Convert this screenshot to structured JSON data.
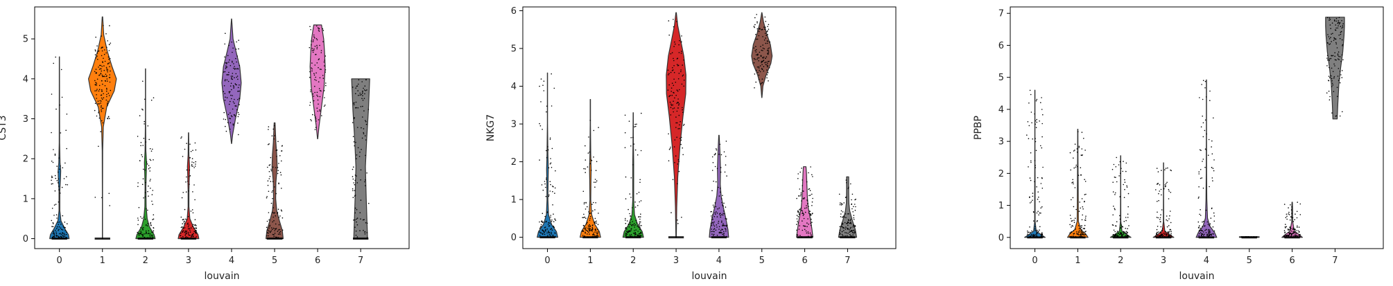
{
  "chart_data": [
    {
      "type": "violin",
      "xlabel": "louvain",
      "ylabel": "CST3",
      "categories": [
        "0",
        "1",
        "2",
        "3",
        "4",
        "5",
        "6",
        "7"
      ],
      "ylim": [
        -0.25,
        5.8
      ],
      "yticks": [
        0,
        1,
        2,
        3,
        4,
        5
      ],
      "colors": [
        "#1f77b4",
        "#ff7f0e",
        "#2ca02c",
        "#d62728",
        "#9467bd",
        "#8c564b",
        "#e377c2",
        "#7f7f7f"
      ],
      "violins": [
        {
          "category": "0",
          "max": 4.55,
          "profile": [
            [
              0,
              0.45
            ],
            [
              0.1,
              0.42
            ],
            [
              0.25,
              0.25
            ],
            [
              0.45,
              0.07
            ],
            [
              0.7,
              0.02
            ],
            [
              1.2,
              0.02
            ],
            [
              1.5,
              0.05
            ],
            [
              1.7,
              0.06
            ],
            [
              1.9,
              0.03
            ],
            [
              2.4,
              0.01
            ],
            [
              4.55,
              0.005
            ]
          ]
        },
        {
          "category": "1",
          "max": 5.55,
          "profile": [
            [
              0,
              0.005
            ],
            [
              1.0,
              0.005
            ],
            [
              2.2,
              0.01
            ],
            [
              2.8,
              0.04
            ],
            [
              3.3,
              0.2
            ],
            [
              3.7,
              0.55
            ],
            [
              4.0,
              0.65
            ],
            [
              4.3,
              0.45
            ],
            [
              4.7,
              0.22
            ],
            [
              5.1,
              0.06
            ],
            [
              5.55,
              0.01
            ]
          ]
        },
        {
          "category": "2",
          "max": 4.25,
          "profile": [
            [
              0,
              0.45
            ],
            [
              0.1,
              0.4
            ],
            [
              0.3,
              0.18
            ],
            [
              0.5,
              0.08
            ],
            [
              0.8,
              0.03
            ],
            [
              1.3,
              0.02
            ],
            [
              1.7,
              0.04
            ],
            [
              1.9,
              0.05
            ],
            [
              2.2,
              0.02
            ],
            [
              3.0,
              0.005
            ],
            [
              4.25,
              0.005
            ]
          ]
        },
        {
          "category": "3",
          "max": 2.65,
          "profile": [
            [
              0,
              0.48
            ],
            [
              0.1,
              0.44
            ],
            [
              0.3,
              0.22
            ],
            [
              0.5,
              0.06
            ],
            [
              0.8,
              0.02
            ],
            [
              1.2,
              0.02
            ],
            [
              1.6,
              0.04
            ],
            [
              1.8,
              0.05
            ],
            [
              2.1,
              0.02
            ],
            [
              2.65,
              0.005
            ]
          ]
        },
        {
          "category": "4",
          "max": 5.5,
          "profile": [
            [
              2.38,
              0.005
            ],
            [
              2.6,
              0.05
            ],
            [
              3.0,
              0.18
            ],
            [
              3.5,
              0.38
            ],
            [
              3.9,
              0.45
            ],
            [
              4.3,
              0.38
            ],
            [
              4.7,
              0.2
            ],
            [
              5.0,
              0.07
            ],
            [
              5.5,
              0.005
            ]
          ]
        },
        {
          "category": "5",
          "max": 2.9,
          "profile": [
            [
              0,
              0.4
            ],
            [
              0.2,
              0.36
            ],
            [
              0.45,
              0.22
            ],
            [
              0.7,
              0.1
            ],
            [
              1.0,
              0.05
            ],
            [
              1.4,
              0.06
            ],
            [
              1.8,
              0.12
            ],
            [
              2.1,
              0.1
            ],
            [
              2.4,
              0.06
            ],
            [
              2.9,
              0.02
            ]
          ]
        },
        {
          "category": "6",
          "max": 5.35,
          "profile": [
            [
              2.5,
              0.005
            ],
            [
              2.8,
              0.06
            ],
            [
              3.3,
              0.18
            ],
            [
              3.8,
              0.3
            ],
            [
              4.3,
              0.35
            ],
            [
              4.7,
              0.32
            ],
            [
              5.0,
              0.28
            ],
            [
              5.35,
              0.18
            ]
          ]
        },
        {
          "category": "7",
          "max": 4.0,
          "profile": [
            [
              0,
              0.32
            ],
            [
              1.0,
              0.26
            ],
            [
              1.8,
              0.22
            ],
            [
              2.5,
              0.28
            ],
            [
              3.2,
              0.36
            ],
            [
              4.0,
              0.42
            ]
          ]
        }
      ]
    },
    {
      "type": "violin",
      "xlabel": "louvain",
      "ylabel": "NKG7",
      "categories": [
        "0",
        "1",
        "2",
        "3",
        "4",
        "5",
        "6",
        "7"
      ],
      "ylim": [
        -0.3,
        6.1
      ],
      "yticks": [
        0,
        1,
        2,
        3,
        4,
        5,
        6
      ],
      "colors": [
        "#1f77b4",
        "#ff7f0e",
        "#2ca02c",
        "#d62728",
        "#9467bd",
        "#8c564b",
        "#e377c2",
        "#7f7f7f"
      ],
      "violins": [
        {
          "category": "0",
          "max": 4.35,
          "profile": [
            [
              0,
              0.48
            ],
            [
              0.15,
              0.42
            ],
            [
              0.35,
              0.18
            ],
            [
              0.6,
              0.05
            ],
            [
              1.0,
              0.02
            ],
            [
              1.5,
              0.03
            ],
            [
              1.8,
              0.04
            ],
            [
              2.2,
              0.02
            ],
            [
              3.0,
              0.005
            ],
            [
              4.35,
              0.005
            ]
          ]
        },
        {
          "category": "1",
          "max": 3.65,
          "profile": [
            [
              0,
              0.48
            ],
            [
              0.15,
              0.42
            ],
            [
              0.35,
              0.2
            ],
            [
              0.6,
              0.06
            ],
            [
              1.0,
              0.02
            ],
            [
              1.5,
              0.03
            ],
            [
              1.8,
              0.04
            ],
            [
              2.2,
              0.02
            ],
            [
              3.0,
              0.005
            ],
            [
              3.65,
              0.005
            ]
          ]
        },
        {
          "category": "2",
          "max": 3.3,
          "profile": [
            [
              0,
              0.48
            ],
            [
              0.15,
              0.42
            ],
            [
              0.35,
              0.2
            ],
            [
              0.6,
              0.06
            ],
            [
              1.0,
              0.02
            ],
            [
              1.5,
              0.02
            ],
            [
              2.0,
              0.02
            ],
            [
              2.5,
              0.01
            ],
            [
              3.3,
              0.005
            ]
          ]
        },
        {
          "category": "3",
          "max": 5.95,
          "profile": [
            [
              0,
              0.01
            ],
            [
              0.8,
              0.03
            ],
            [
              1.6,
              0.08
            ],
            [
              2.4,
              0.18
            ],
            [
              3.2,
              0.32
            ],
            [
              3.8,
              0.45
            ],
            [
              4.3,
              0.46
            ],
            [
              4.8,
              0.36
            ],
            [
              5.2,
              0.22
            ],
            [
              5.6,
              0.08
            ],
            [
              5.95,
              0.01
            ]
          ]
        },
        {
          "category": "4",
          "max": 2.7,
          "profile": [
            [
              0,
              0.45
            ],
            [
              0.2,
              0.42
            ],
            [
              0.5,
              0.32
            ],
            [
              0.8,
              0.2
            ],
            [
              1.1,
              0.1
            ],
            [
              1.4,
              0.06
            ],
            [
              1.8,
              0.07
            ],
            [
              2.2,
              0.05
            ],
            [
              2.7,
              0.01
            ]
          ]
        },
        {
          "category": "5",
          "max": 5.95,
          "profile": [
            [
              3.7,
              0.005
            ],
            [
              4.0,
              0.05
            ],
            [
              4.3,
              0.2
            ],
            [
              4.6,
              0.42
            ],
            [
              4.8,
              0.48
            ],
            [
              5.1,
              0.4
            ],
            [
              5.4,
              0.22
            ],
            [
              5.7,
              0.08
            ],
            [
              5.95,
              0.005
            ]
          ]
        },
        {
          "category": "6",
          "max": 1.87,
          "profile": [
            [
              0,
              0.38
            ],
            [
              0.2,
              0.34
            ],
            [
              0.5,
              0.26
            ],
            [
              0.8,
              0.16
            ],
            [
              1.1,
              0.12
            ],
            [
              1.4,
              0.1
            ],
            [
              1.7,
              0.08
            ],
            [
              1.87,
              0.06
            ]
          ]
        },
        {
          "category": "7",
          "max": 1.6,
          "profile": [
            [
              0,
              0.42
            ],
            [
              0.2,
              0.36
            ],
            [
              0.45,
              0.22
            ],
            [
              0.7,
              0.1
            ],
            [
              0.9,
              0.06
            ],
            [
              1.2,
              0.05
            ],
            [
              1.45,
              0.05
            ],
            [
              1.6,
              0.05
            ]
          ]
        }
      ]
    },
    {
      "type": "violin",
      "xlabel": "louvain",
      "ylabel": "PPBP",
      "categories": [
        "0",
        "1",
        "2",
        "3",
        "4",
        "5",
        "6",
        "7"
      ],
      "ylim": [
        -0.35,
        7.2
      ],
      "yticks": [
        0,
        1,
        2,
        3,
        4,
        5,
        6,
        7
      ],
      "colors": [
        "#1f77b4",
        "#ff7f0e",
        "#2ca02c",
        "#d62728",
        "#9467bd",
        "#8c564b",
        "#e377c2",
        "#7f7f7f"
      ],
      "violins": [
        {
          "category": "0",
          "max": 4.6,
          "profile": [
            [
              0,
              0.48
            ],
            [
              0.08,
              0.3
            ],
            [
              0.2,
              0.06
            ],
            [
              0.5,
              0.01
            ],
            [
              1.5,
              0.01
            ],
            [
              3.0,
              0.005
            ],
            [
              4.6,
              0.005
            ]
          ]
        },
        {
          "category": "1",
          "max": 3.38,
          "profile": [
            [
              0,
              0.48
            ],
            [
              0.1,
              0.38
            ],
            [
              0.25,
              0.14
            ],
            [
              0.5,
              0.03
            ],
            [
              1.5,
              0.02
            ],
            [
              2.5,
              0.01
            ],
            [
              3.38,
              0.005
            ]
          ]
        },
        {
          "category": "2",
          "max": 2.55,
          "profile": [
            [
              0,
              0.48
            ],
            [
              0.08,
              0.3
            ],
            [
              0.2,
              0.06
            ],
            [
              0.5,
              0.01
            ],
            [
              1.5,
              0.005
            ],
            [
              2.55,
              0.005
            ]
          ]
        },
        {
          "category": "3",
          "max": 2.33,
          "profile": [
            [
              0,
              0.48
            ],
            [
              0.08,
              0.3
            ],
            [
              0.2,
              0.06
            ],
            [
              0.5,
              0.01
            ],
            [
              1.5,
              0.005
            ],
            [
              2.33,
              0.005
            ]
          ]
        },
        {
          "category": "4",
          "max": 4.92,
          "profile": [
            [
              0,
              0.48
            ],
            [
              0.15,
              0.38
            ],
            [
              0.35,
              0.16
            ],
            [
              0.6,
              0.05
            ],
            [
              1.2,
              0.02
            ],
            [
              2.0,
              0.01
            ],
            [
              3.5,
              0.005
            ],
            [
              4.92,
              0.005
            ]
          ]
        },
        {
          "category": "5",
          "max": 0.02,
          "profile": [
            [
              0,
              0.46
            ],
            [
              0.02,
              0.46
            ]
          ]
        },
        {
          "category": "6",
          "max": 1.1,
          "profile": [
            [
              0,
              0.48
            ],
            [
              0.08,
              0.34
            ],
            [
              0.2,
              0.1
            ],
            [
              0.5,
              0.02
            ],
            [
              0.9,
              0.02
            ],
            [
              1.1,
              0.01
            ]
          ]
        },
        {
          "category": "7",
          "max": 6.88,
          "profile": [
            [
              3.7,
              0.1
            ],
            [
              4.2,
              0.13
            ],
            [
              4.8,
              0.18
            ],
            [
              5.3,
              0.26
            ],
            [
              5.8,
              0.36
            ],
            [
              6.3,
              0.42
            ],
            [
              6.6,
              0.44
            ],
            [
              6.88,
              0.44
            ]
          ]
        }
      ]
    }
  ]
}
